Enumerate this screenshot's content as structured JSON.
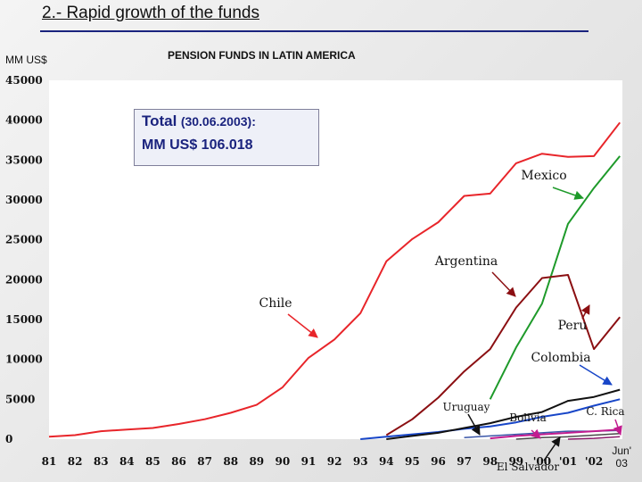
{
  "slide": {
    "title": "2.- Rapid growth of the funds",
    "y_unit": "MM US$"
  },
  "total_box": {
    "label": "Total",
    "date": "(30.06.2003):",
    "value": "MM US$ 106.018"
  },
  "chart_data": {
    "type": "line",
    "title": "PENSION FUNDS IN LATIN AMERICA",
    "ylabel": "MM US$",
    "ylim": [
      0,
      45000
    ],
    "yticks": [
      0,
      5000,
      10000,
      15000,
      20000,
      25000,
      30000,
      35000,
      40000,
      45000
    ],
    "ytick_labels": [
      "0",
      "5000",
      "10000",
      "15000",
      "20000",
      "25000",
      "30000",
      "35000",
      "40000",
      "45000"
    ],
    "x": [
      "81",
      "82",
      "83",
      "84",
      "85",
      "86",
      "87",
      "88",
      "89",
      "90",
      "91",
      "92",
      "93",
      "94",
      "95",
      "96",
      "97",
      "98",
      "99",
      "'00",
      "'01",
      "'02",
      "Jun' 03"
    ],
    "xtick_labels": [
      "81",
      "82",
      "83",
      "84",
      "85",
      "86",
      "87",
      "88",
      "89",
      "90",
      "91",
      "92",
      "93",
      "94",
      "95",
      "96",
      "97",
      "98",
      "99",
      "'00",
      "'01",
      "'02"
    ],
    "last_tick_label": [
      "Jun'",
      "03"
    ],
    "series": [
      {
        "name": "Chile",
        "color": "#e8252a",
        "width": 2,
        "values": [
          300,
          500,
          1000,
          1200,
          1400,
          1900,
          2500,
          3300,
          4300,
          6500,
          10200,
          12500,
          15800,
          22300,
          25100,
          27200,
          30500,
          30800,
          34600,
          35800,
          35400,
          35500,
          39700
        ]
      },
      {
        "name": "Mexico",
        "color": "#1e9a2a",
        "width": 2,
        "values": [
          null,
          null,
          null,
          null,
          null,
          null,
          null,
          null,
          null,
          null,
          null,
          null,
          null,
          null,
          null,
          null,
          null,
          5000,
          11500,
          17000,
          27000,
          31500,
          35500
        ]
      },
      {
        "name": "Argentina",
        "color": "#8b0f12",
        "width": 2,
        "values": [
          null,
          null,
          null,
          null,
          null,
          null,
          null,
          null,
          null,
          null,
          null,
          null,
          null,
          500,
          2500,
          5200,
          8500,
          11300,
          16500,
          20200,
          20600,
          11300,
          15300
        ]
      },
      {
        "name": "Peru",
        "color": "#1846c8",
        "width": 2,
        "values": [
          null,
          null,
          null,
          null,
          null,
          null,
          null,
          null,
          null,
          null,
          null,
          null,
          0,
          300,
          600,
          900,
          1300,
          1600,
          2100,
          2800,
          3300,
          4200,
          5000
        ]
      },
      {
        "name": "Colombia",
        "color": "#111111",
        "width": 2,
        "values": [
          null,
          null,
          null,
          null,
          null,
          null,
          null,
          null,
          null,
          null,
          null,
          null,
          null,
          0,
          400,
          800,
          1400,
          2000,
          2800,
          3400,
          4800,
          5300,
          6200
        ]
      },
      {
        "name": "Uruguay",
        "color": "#3a56a8",
        "width": 1.5,
        "values": [
          null,
          null,
          null,
          null,
          null,
          null,
          null,
          null,
          null,
          null,
          null,
          null,
          null,
          null,
          null,
          null,
          200,
          400,
          600,
          800,
          1000,
          1000,
          1100
        ]
      },
      {
        "name": "Bolivia",
        "color": "#c21c8f",
        "width": 2,
        "values": [
          null,
          null,
          null,
          null,
          null,
          null,
          null,
          null,
          null,
          null,
          null,
          null,
          null,
          null,
          null,
          null,
          null,
          100,
          400,
          600,
          800,
          1000,
          1200
        ]
      },
      {
        "name": "El Salvador",
        "color": "#4a4a4a",
        "width": 1.5,
        "values": [
          null,
          null,
          null,
          null,
          null,
          null,
          null,
          null,
          null,
          null,
          null,
          null,
          null,
          null,
          null,
          null,
          null,
          null,
          0,
          200,
          300,
          500,
          700
        ]
      },
      {
        "name": "C. Rica",
        "color": "#8a1a6a",
        "width": 1.5,
        "values": [
          null,
          null,
          null,
          null,
          null,
          null,
          null,
          null,
          null,
          null,
          null,
          null,
          null,
          null,
          null,
          null,
          null,
          null,
          null,
          null,
          0,
          100,
          300
        ]
      }
    ],
    "annotations": [
      {
        "text": "Chile",
        "series": "Chile",
        "arrow_color": "#e8252a"
      },
      {
        "text": "Mexico",
        "series": "Mexico",
        "arrow_color": "#1e9a2a"
      },
      {
        "text": "Argentina",
        "series": "Argentina",
        "arrow_color": "#8b0f12"
      },
      {
        "text": "Peru",
        "series": "Peru",
        "arrow_color": "#8b0f12"
      },
      {
        "text": "Colombia",
        "series": "Colombia",
        "arrow_color": "#1846c8"
      },
      {
        "text": "Uruguay",
        "series": "Uruguay",
        "arrow_color": "#111111"
      },
      {
        "text": "Bolivia",
        "series": "Bolivia",
        "arrow_color": "#c21c8f"
      },
      {
        "text": "C. Rica",
        "series": "C. Rica",
        "arrow_color": "#c21c8f"
      },
      {
        "text": "El Salvador",
        "series": "El Salvador",
        "arrow_color": "#111111"
      }
    ],
    "grid": false,
    "legend": "none"
  }
}
